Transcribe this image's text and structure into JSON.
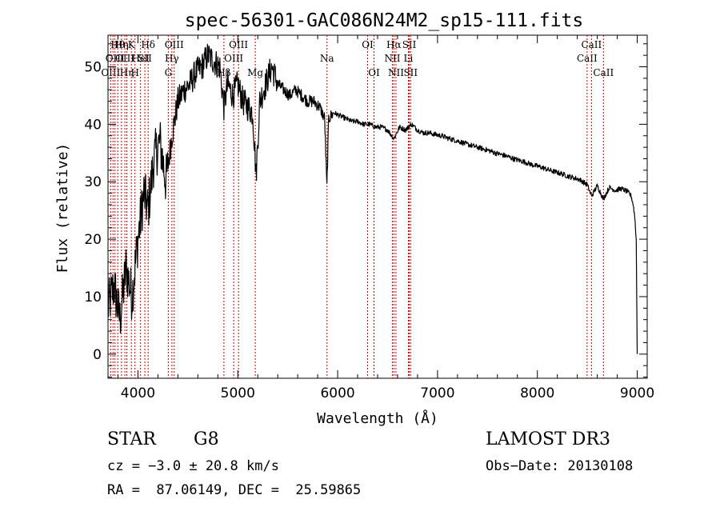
{
  "chart_data": {
    "type": "line",
    "title": "spec-56301-GAC086N24M2_sp15-111.fits",
    "xlabel": "Wavelength (Å)",
    "ylabel": "Flux (relative)",
    "xlim": [
      3700,
      9100
    ],
    "ylim": [
      -4.2,
      55.5
    ],
    "xticks": [
      4000,
      5000,
      6000,
      7000,
      8000,
      9000
    ],
    "yticks": [
      0,
      10,
      20,
      30,
      40,
      50
    ],
    "x_minor_step": 200,
    "y_minor_step": 2,
    "grid": false,
    "colors": {
      "line": "#000000",
      "marker": "#cc0000",
      "text": "#000000"
    },
    "series": [
      {
        "name": "flux",
        "x": [
          3700,
          3760,
          3820,
          3880,
          3940,
          4000,
          4060,
          4101,
          4160,
          4220,
          4280,
          4340,
          4400,
          4460,
          4520,
          4580,
          4640,
          4700,
          4760,
          4820,
          4861,
          4900,
          4950,
          5000,
          5050,
          5100,
          5150,
          5183,
          5220,
          5280,
          5340,
          5400,
          5460,
          5520,
          5580,
          5640,
          5700,
          5760,
          5820,
          5870,
          5892,
          5910,
          5960,
          6020,
          6080,
          6140,
          6200,
          6260,
          6320,
          6380,
          6440,
          6500,
          6563,
          6620,
          6680,
          6740,
          6800,
          6860,
          6920,
          6980,
          7040,
          7100,
          7160,
          7220,
          7280,
          7340,
          7400,
          7460,
          7520,
          7580,
          7640,
          7700,
          7760,
          7820,
          7880,
          7940,
          8000,
          8060,
          8120,
          8180,
          8240,
          8300,
          8360,
          8420,
          8498,
          8542,
          8600,
          8662,
          8720,
          8780,
          8840,
          8900,
          8940,
          8960,
          8975,
          8990,
          8995,
          9000
        ],
        "y": [
          8,
          12,
          6,
          15,
          10,
          20,
          28,
          25,
          34,
          37,
          30,
          38,
          44,
          46,
          47,
          49,
          50,
          52,
          51,
          50,
          43,
          47,
          45,
          47,
          44,
          43,
          42,
          31,
          44,
          47,
          50,
          47,
          46,
          45,
          46,
          45,
          44,
          44,
          43,
          41,
          29,
          41,
          42,
          41.5,
          41,
          40.5,
          40.5,
          40,
          40,
          39.5,
          39.5,
          39,
          37.5,
          39.5,
          39,
          40,
          39,
          38.5,
          38.5,
          38.2,
          38,
          37.6,
          37.3,
          37,
          36.6,
          36.3,
          36,
          35.7,
          35.4,
          35,
          34.7,
          34.4,
          34,
          33.7,
          33.4,
          33,
          32.7,
          32.4,
          32,
          31.7,
          31.4,
          31,
          30.7,
          30.4,
          29.5,
          27.5,
          29.3,
          27,
          29,
          28.5,
          28.8,
          28.3,
          27.5,
          26,
          24,
          20,
          10,
          0
        ]
      }
    ],
    "line_markers": [
      {
        "x": 3727,
        "row": 2,
        "label": "OIII"
      },
      {
        "x": 3750,
        "row": 2,
        "label": ""
      },
      {
        "x": 3770,
        "row": 1,
        "label": "OIII"
      },
      {
        "x": 3798,
        "row": 0,
        "label": "Hθ"
      },
      {
        "x": 3835,
        "row": 0,
        "label": "Hη"
      },
      {
        "x": 3869,
        "row": 1,
        "label": "OIII"
      },
      {
        "x": 3889,
        "row": 2,
        "label": "Hη"
      },
      {
        "x": 3934,
        "row": 0,
        "label": "K"
      },
      {
        "x": 3970,
        "row": 2,
        "label": "H"
      },
      {
        "x": 4026,
        "row": 1,
        "label": "HeI"
      },
      {
        "x": 4069,
        "row": 1,
        "label": "SII"
      },
      {
        "x": 4102,
        "row": 0,
        "label": "Hδ"
      },
      {
        "x": 4304,
        "row": 2,
        "label": "G"
      },
      {
        "x": 4340,
        "row": 1,
        "label": "Hγ"
      },
      {
        "x": 4363,
        "row": 0,
        "label": "OIII"
      },
      {
        "x": 4861,
        "row": 2,
        "label": "Hβ"
      },
      {
        "x": 4959,
        "row": 1,
        "label": "OIII"
      },
      {
        "x": 5007,
        "row": 0,
        "label": "OIII"
      },
      {
        "x": 5175,
        "row": 2,
        "label": "Mg"
      },
      {
        "x": 5893,
        "row": 1,
        "label": "Na"
      },
      {
        "x": 6300,
        "row": 0,
        "label": "OI"
      },
      {
        "x": 6364,
        "row": 2,
        "label": "OI"
      },
      {
        "x": 6548,
        "row": 1,
        "label": "NII"
      },
      {
        "x": 6563,
        "row": 0,
        "label": "Hα"
      },
      {
        "x": 6584,
        "row": 2,
        "label": "NII"
      },
      {
        "x": 6708,
        "row": 1,
        "label": "Li"
      },
      {
        "x": 6717,
        "row": 0,
        "label": "SII"
      },
      {
        "x": 6731,
        "row": 2,
        "label": "SII"
      },
      {
        "x": 8498,
        "row": 1,
        "label": "CaII"
      },
      {
        "x": 8542,
        "row": 0,
        "label": "CaII"
      },
      {
        "x": 8662,
        "row": 2,
        "label": "CaII"
      }
    ]
  },
  "footer": {
    "class_label": "STAR",
    "subclass_label": "G8",
    "survey": "LAMOST DR3",
    "cz": "cz = −3.0 ± 20.8 km/s",
    "obs_date": "Obs−Date: 20130108",
    "radec": "RA =  87.06149, DEC =  25.59865"
  }
}
